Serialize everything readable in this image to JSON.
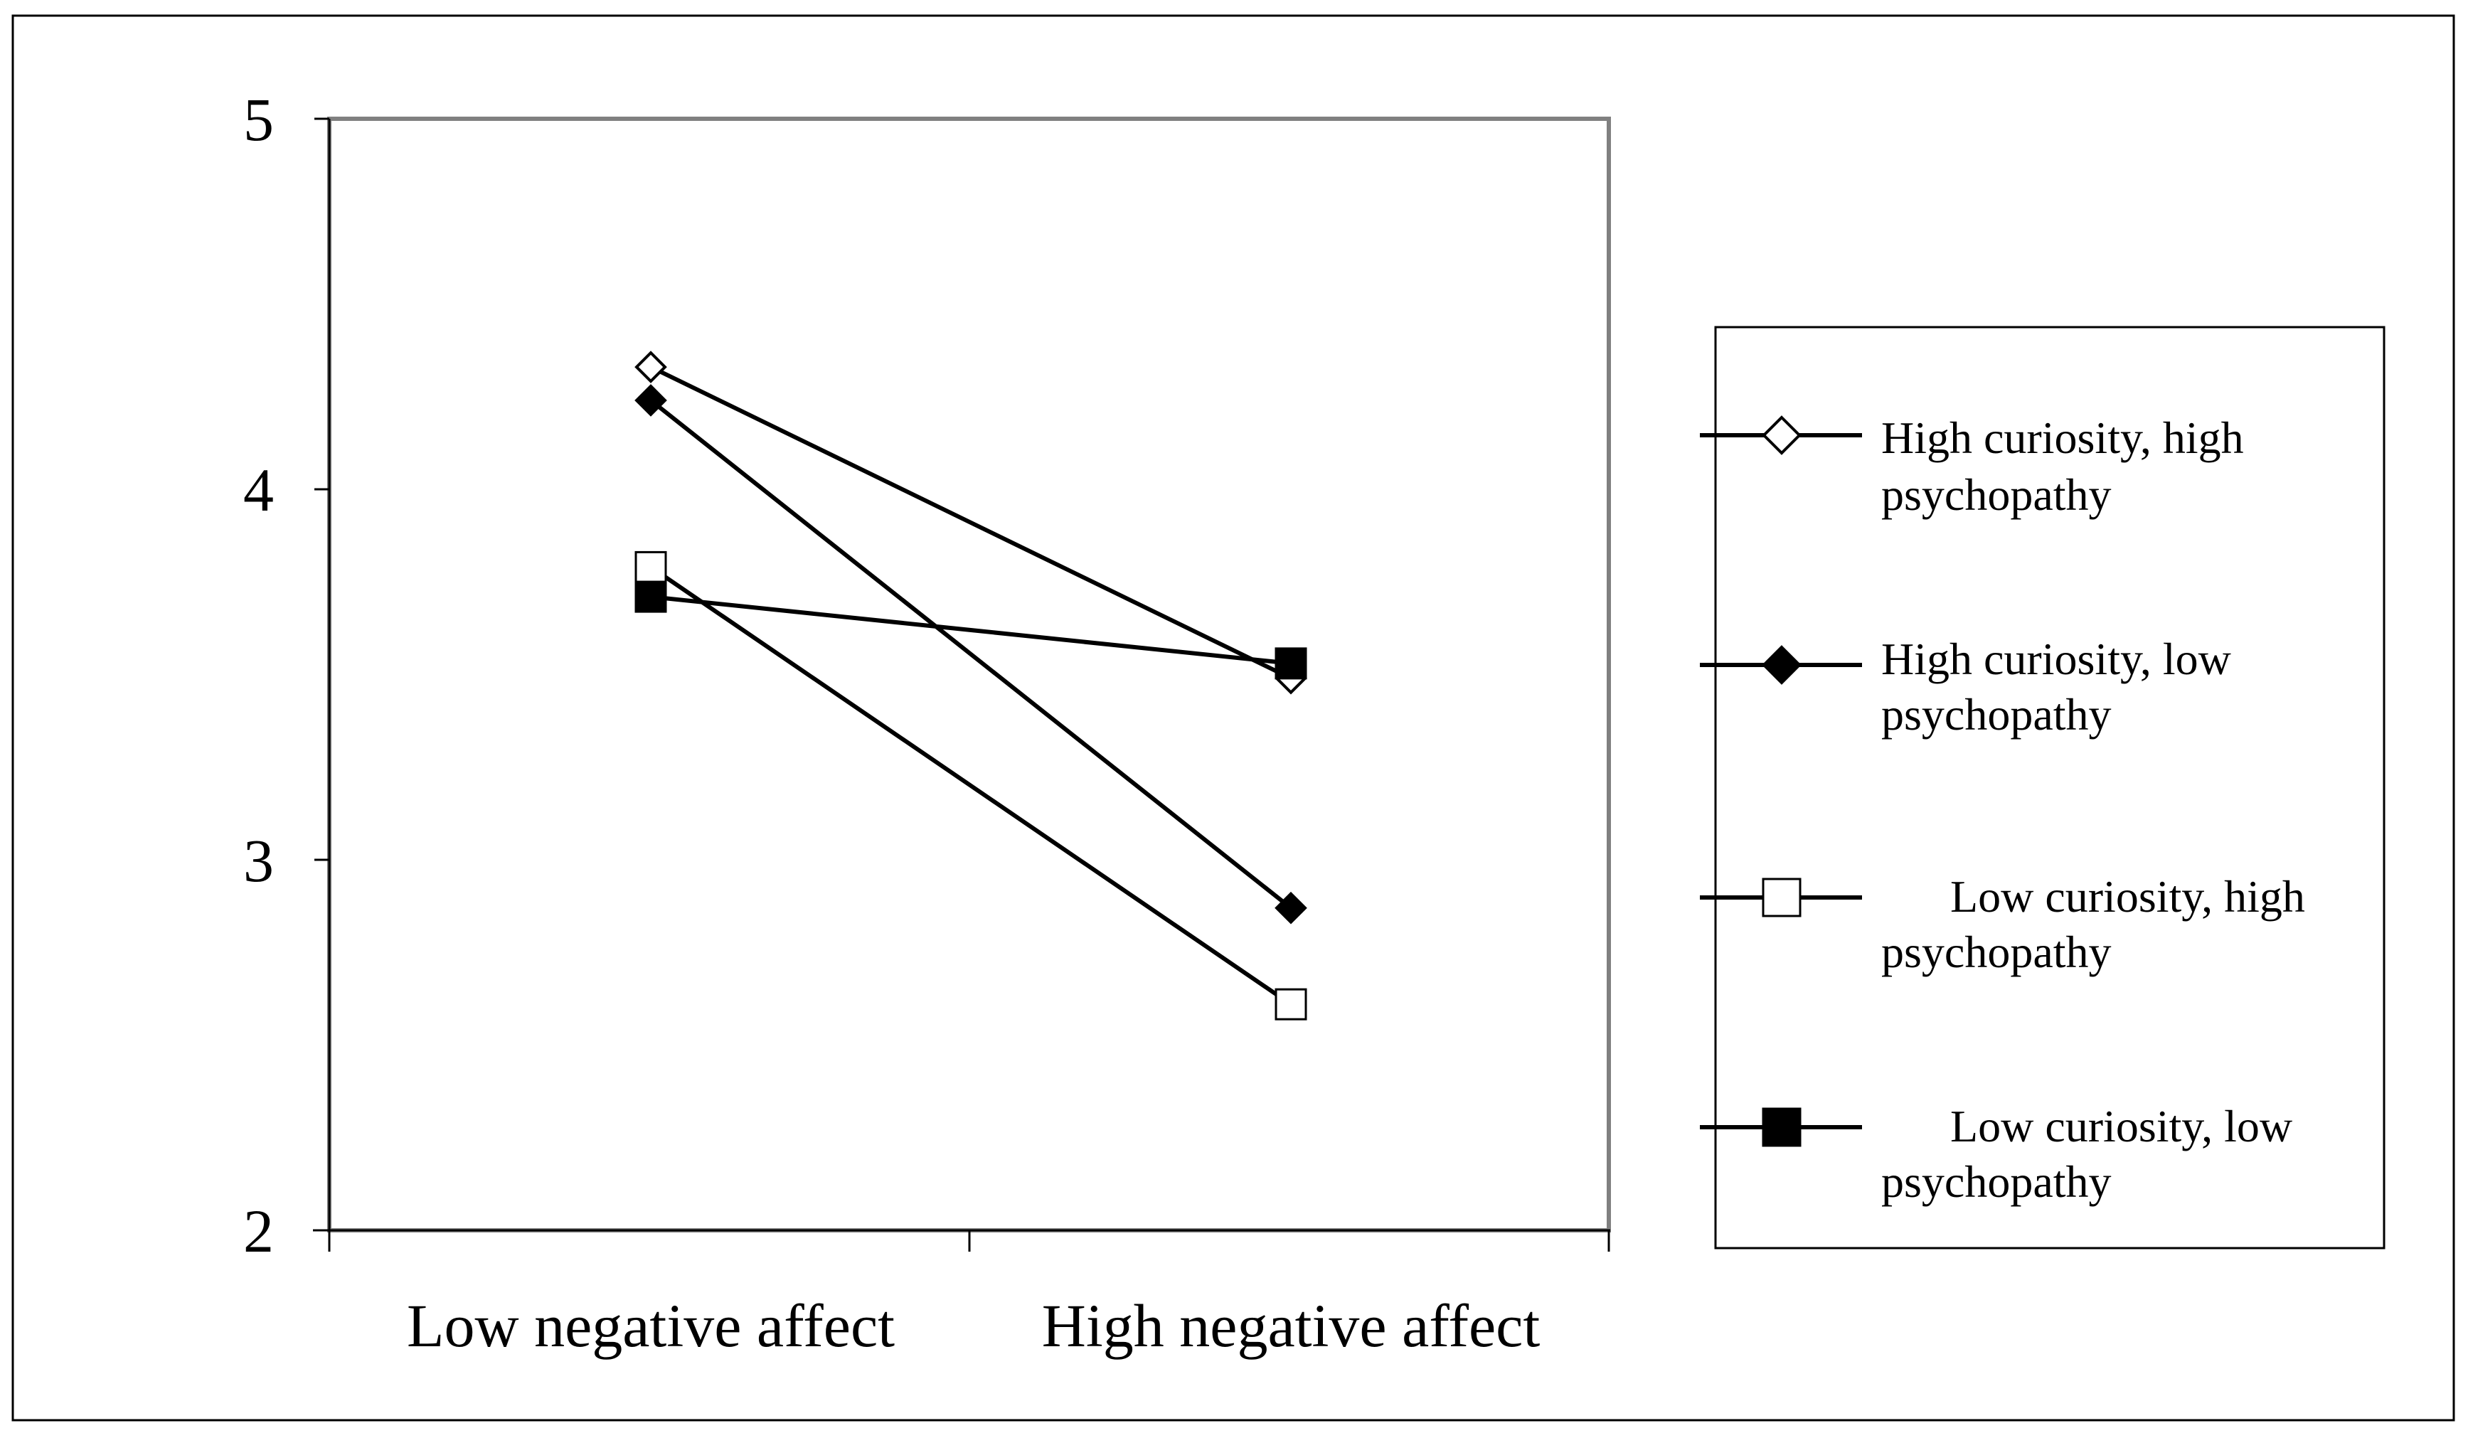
{
  "chart_data": {
    "type": "line",
    "title": "",
    "xlabel": "",
    "ylabel": "",
    "categories": [
      "Low negative affect",
      "High negative affect"
    ],
    "ylim": [
      2,
      5
    ],
    "yticks": [
      "2",
      "3",
      "4",
      "5"
    ],
    "grid": false,
    "legend_position": "right",
    "series": [
      {
        "name": "High curiosity, high psychopathy",
        "marker": "diamond-open",
        "values": [
          4.33,
          3.49
        ],
        "legend_lines": [
          "High curiosity, high",
          "psychopathy"
        ]
      },
      {
        "name": "High curiosity, low psychopathy",
        "marker": "diamond-filled",
        "values": [
          4.24,
          2.87
        ],
        "legend_lines": [
          "High curiosity, low",
          "psychopathy"
        ]
      },
      {
        "name": "Low curiosity, high psychopathy",
        "marker": "square-open",
        "values": [
          3.79,
          2.61
        ],
        "legend_lines": [
          "Low curiosity, high",
          "psychopathy"
        ]
      },
      {
        "name": "Low curiosity, low psychopathy",
        "marker": "square-filled",
        "values": [
          3.71,
          3.53
        ],
        "legend_lines": [
          "Low curiosity, low",
          "psychopathy"
        ]
      }
    ]
  }
}
